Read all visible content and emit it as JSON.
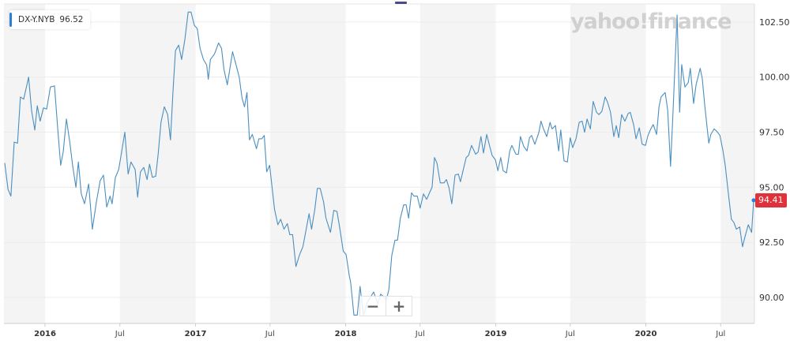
{
  "legend": {
    "symbol": "DX-Y.NYB",
    "value": "96.52",
    "color": "#2e7dd7"
  },
  "watermark_logo": "yahoo!finance",
  "zoom_controls": {
    "zoom_out": "−",
    "zoom_in": "+"
  },
  "current_price_tag": {
    "value": "94.41",
    "color": "#e0323a"
  },
  "chart_data": {
    "type": "line",
    "title": "",
    "xlabel": "",
    "ylabel": "",
    "xlim": [
      "2015-09-23",
      "2020-09-21"
    ],
    "ylim": [
      88.82,
      103.32
    ],
    "grid": {
      "horizontal": true,
      "vertical": false
    },
    "shaded_bands": "second half of each year (Jul–Dec)",
    "line_color": "#4a8fc0",
    "y_ticks": [
      {
        "value": 90,
        "label": "90.00"
      },
      {
        "value": 92.5,
        "label": "92.50"
      },
      {
        "value": 95,
        "label": "95.00"
      },
      {
        "value": 97.5,
        "label": "97.50"
      },
      {
        "value": 100,
        "label": "100.00"
      },
      {
        "value": 102.5,
        "label": "102.50"
      }
    ],
    "x_ticks": [
      {
        "date": "2016-01-01",
        "label": "2016",
        "year": true
      },
      {
        "date": "2016-07-01",
        "label": "Jul",
        "year": false
      },
      {
        "date": "2017-01-01",
        "label": "2017",
        "year": true
      },
      {
        "date": "2017-07-01",
        "label": "Jul",
        "year": false
      },
      {
        "date": "2018-01-01",
        "label": "2018",
        "year": true
      },
      {
        "date": "2018-07-01",
        "label": "Jul",
        "year": false
      },
      {
        "date": "2019-01-01",
        "label": "2019",
        "year": true
      },
      {
        "date": "2019-07-01",
        "label": "Jul",
        "year": false
      },
      {
        "date": "2020-01-01",
        "label": "2020",
        "year": true
      },
      {
        "date": "2020-07-01",
        "label": "Jul",
        "year": false
      }
    ],
    "series": [
      {
        "points": [
          [
            "2015-09-25",
            96.1
          ],
          [
            "2015-10-03",
            94.9
          ],
          [
            "2015-10-10",
            94.6
          ],
          [
            "2015-10-18",
            97.05
          ],
          [
            "2015-10-26",
            97.0
          ],
          [
            "2015-11-02",
            99.1
          ],
          [
            "2015-11-10",
            99.0
          ],
          [
            "2015-11-22",
            100.0
          ],
          [
            "2015-11-29",
            98.5
          ],
          [
            "2015-12-07",
            97.6
          ],
          [
            "2015-12-13",
            98.7
          ],
          [
            "2015-12-20",
            98.0
          ],
          [
            "2015-12-28",
            98.6
          ],
          [
            "2016-01-05",
            98.55
          ],
          [
            "2016-01-14",
            99.55
          ],
          [
            "2016-01-24",
            99.6
          ],
          [
            "2016-02-01",
            97.6
          ],
          [
            "2016-02-08",
            96.0
          ],
          [
            "2016-02-14",
            96.6
          ],
          [
            "2016-02-22",
            98.1
          ],
          [
            "2016-03-01",
            97.05
          ],
          [
            "2016-03-08",
            96.0
          ],
          [
            "2016-03-16",
            95.0
          ],
          [
            "2016-03-22",
            96.15
          ],
          [
            "2016-03-29",
            94.7
          ],
          [
            "2016-04-06",
            94.25
          ],
          [
            "2016-04-16",
            95.15
          ],
          [
            "2016-04-25",
            93.1
          ],
          [
            "2016-05-05",
            94.35
          ],
          [
            "2016-05-14",
            95.3
          ],
          [
            "2016-05-22",
            95.55
          ],
          [
            "2016-05-30",
            94.1
          ],
          [
            "2016-06-07",
            94.6
          ],
          [
            "2016-06-12",
            94.25
          ],
          [
            "2016-06-20",
            95.45
          ],
          [
            "2016-06-28",
            95.8
          ],
          [
            "2016-07-03",
            96.35
          ],
          [
            "2016-07-13",
            97.5
          ],
          [
            "2016-07-21",
            95.6
          ],
          [
            "2016-07-28",
            96.15
          ],
          [
            "2016-08-07",
            95.8
          ],
          [
            "2016-08-13",
            94.55
          ],
          [
            "2016-08-20",
            95.7
          ],
          [
            "2016-08-28",
            95.9
          ],
          [
            "2016-09-05",
            95.35
          ],
          [
            "2016-09-11",
            96.05
          ],
          [
            "2016-09-18",
            95.45
          ],
          [
            "2016-09-26",
            95.5
          ],
          [
            "2016-10-02",
            96.5
          ],
          [
            "2016-10-09",
            97.95
          ],
          [
            "2016-10-17",
            98.65
          ],
          [
            "2016-10-25",
            98.3
          ],
          [
            "2016-11-01",
            97.15
          ],
          [
            "2016-11-07",
            99.3
          ],
          [
            "2016-11-13",
            101.2
          ],
          [
            "2016-11-21",
            101.45
          ],
          [
            "2016-11-28",
            100.8
          ],
          [
            "2016-12-06",
            101.7
          ],
          [
            "2016-12-14",
            102.95
          ],
          [
            "2016-12-21",
            102.95
          ],
          [
            "2016-12-29",
            102.35
          ],
          [
            "2017-01-05",
            102.2
          ],
          [
            "2017-01-12",
            101.3
          ],
          [
            "2017-01-20",
            100.8
          ],
          [
            "2017-01-28",
            100.55
          ],
          [
            "2017-02-01",
            99.9
          ],
          [
            "2017-02-06",
            100.8
          ],
          [
            "2017-02-16",
            101.05
          ],
          [
            "2017-02-26",
            101.55
          ],
          [
            "2017-03-05",
            101.3
          ],
          [
            "2017-03-11",
            100.35
          ],
          [
            "2017-03-19",
            99.65
          ],
          [
            "2017-04-01",
            101.15
          ],
          [
            "2017-04-11",
            100.45
          ],
          [
            "2017-04-17",
            100.0
          ],
          [
            "2017-04-24",
            99.05
          ],
          [
            "2017-04-30",
            98.65
          ],
          [
            "2017-05-06",
            99.3
          ],
          [
            "2017-05-12",
            97.15
          ],
          [
            "2017-05-19",
            97.4
          ],
          [
            "2017-05-29",
            96.75
          ],
          [
            "2017-06-04",
            97.2
          ],
          [
            "2017-06-11",
            97.2
          ],
          [
            "2017-06-17",
            97.35
          ],
          [
            "2017-06-23",
            95.7
          ],
          [
            "2017-06-30",
            96.0
          ],
          [
            "2017-07-12",
            94.0
          ],
          [
            "2017-07-20",
            93.3
          ],
          [
            "2017-07-27",
            93.55
          ],
          [
            "2017-08-04",
            93.1
          ],
          [
            "2017-08-12",
            93.35
          ],
          [
            "2017-08-18",
            92.85
          ],
          [
            "2017-08-25",
            92.85
          ],
          [
            "2017-09-02",
            91.4
          ],
          [
            "2017-09-11",
            91.95
          ],
          [
            "2017-09-19",
            92.3
          ],
          [
            "2017-09-27",
            93.1
          ],
          [
            "2017-10-04",
            93.8
          ],
          [
            "2017-10-10",
            93.1
          ],
          [
            "2017-10-18",
            94.0
          ],
          [
            "2017-10-24",
            94.95
          ],
          [
            "2017-10-31",
            94.95
          ],
          [
            "2017-11-08",
            94.35
          ],
          [
            "2017-11-14",
            93.6
          ],
          [
            "2017-11-25",
            92.95
          ],
          [
            "2017-12-03",
            93.95
          ],
          [
            "2017-12-11",
            93.9
          ],
          [
            "2017-12-18",
            93.1
          ],
          [
            "2017-12-26",
            92.1
          ],
          [
            "2018-01-02",
            91.95
          ],
          [
            "2018-01-10",
            90.95
          ],
          [
            "2018-01-13",
            90.7
          ],
          [
            "2018-01-21",
            89.2
          ],
          [
            "2018-01-29",
            89.2
          ],
          [
            "2018-02-05",
            90.5
          ],
          [
            "2018-02-13",
            89.2
          ],
          [
            "2018-02-23",
            89.8
          ],
          [
            "2018-03-10",
            90.25
          ],
          [
            "2018-03-20",
            89.7
          ],
          [
            "2018-03-27",
            90.15
          ],
          [
            "2018-04-02",
            90.05
          ],
          [
            "2018-04-10",
            89.9
          ],
          [
            "2018-04-16",
            90.35
          ],
          [
            "2018-04-23",
            91.9
          ],
          [
            "2018-05-01",
            92.6
          ],
          [
            "2018-05-07",
            92.6
          ],
          [
            "2018-05-14",
            93.6
          ],
          [
            "2018-05-22",
            94.2
          ],
          [
            "2018-05-28",
            94.2
          ],
          [
            "2018-06-03",
            93.6
          ],
          [
            "2018-06-10",
            94.75
          ],
          [
            "2018-06-16",
            94.6
          ],
          [
            "2018-06-24",
            94.6
          ],
          [
            "2018-07-01",
            94.05
          ],
          [
            "2018-07-09",
            94.7
          ],
          [
            "2018-07-17",
            94.45
          ],
          [
            "2018-07-25",
            94.8
          ],
          [
            "2018-07-30",
            95.0
          ],
          [
            "2018-08-05",
            96.35
          ],
          [
            "2018-08-11",
            96.1
          ],
          [
            "2018-08-19",
            95.2
          ],
          [
            "2018-08-28",
            95.2
          ],
          [
            "2018-09-03",
            95.35
          ],
          [
            "2018-09-09",
            95.0
          ],
          [
            "2018-09-16",
            94.25
          ],
          [
            "2018-09-24",
            95.55
          ],
          [
            "2018-10-02",
            95.6
          ],
          [
            "2018-10-07",
            95.25
          ],
          [
            "2018-10-21",
            96.35
          ],
          [
            "2018-10-27",
            96.45
          ],
          [
            "2018-11-03",
            96.9
          ],
          [
            "2018-11-13",
            96.5
          ],
          [
            "2018-11-19",
            96.6
          ],
          [
            "2018-11-26",
            97.3
          ],
          [
            "2018-12-02",
            96.55
          ],
          [
            "2018-12-10",
            97.4
          ],
          [
            "2018-12-16",
            96.95
          ],
          [
            "2018-12-23",
            96.45
          ],
          [
            "2018-12-31",
            96.25
          ],
          [
            "2019-01-06",
            95.75
          ],
          [
            "2019-01-13",
            96.35
          ],
          [
            "2019-01-19",
            95.75
          ],
          [
            "2019-01-27",
            95.65
          ],
          [
            "2019-02-04",
            96.65
          ],
          [
            "2019-02-09",
            96.9
          ],
          [
            "2019-02-19",
            96.5
          ],
          [
            "2019-02-25",
            96.5
          ],
          [
            "2019-03-02",
            97.3
          ],
          [
            "2019-03-10",
            96.85
          ],
          [
            "2019-03-18",
            96.65
          ],
          [
            "2019-03-24",
            97.25
          ],
          [
            "2019-03-29",
            97.35
          ],
          [
            "2019-04-06",
            96.95
          ],
          [
            "2019-04-16",
            97.5
          ],
          [
            "2019-04-21",
            98.0
          ],
          [
            "2019-04-27",
            97.65
          ],
          [
            "2019-05-05",
            97.3
          ],
          [
            "2019-05-13",
            97.95
          ],
          [
            "2019-05-18",
            97.65
          ],
          [
            "2019-05-26",
            97.8
          ],
          [
            "2019-06-03",
            96.65
          ],
          [
            "2019-06-08",
            97.6
          ],
          [
            "2019-06-16",
            96.2
          ],
          [
            "2019-06-24",
            96.15
          ],
          [
            "2019-07-01",
            97.25
          ],
          [
            "2019-07-07",
            96.8
          ],
          [
            "2019-07-15",
            97.2
          ],
          [
            "2019-07-23",
            97.95
          ],
          [
            "2019-07-30",
            98.0
          ],
          [
            "2019-08-05",
            97.5
          ],
          [
            "2019-08-11",
            98.1
          ],
          [
            "2019-08-19",
            97.65
          ],
          [
            "2019-08-26",
            98.9
          ],
          [
            "2019-09-03",
            98.4
          ],
          [
            "2019-09-09",
            98.3
          ],
          [
            "2019-09-16",
            98.45
          ],
          [
            "2019-09-24",
            99.1
          ],
          [
            "2019-09-30",
            98.85
          ],
          [
            "2019-10-07",
            98.4
          ],
          [
            "2019-10-15",
            97.3
          ],
          [
            "2019-10-21",
            97.8
          ],
          [
            "2019-10-27",
            97.25
          ],
          [
            "2019-11-03",
            98.3
          ],
          [
            "2019-11-11",
            98.0
          ],
          [
            "2019-11-19",
            98.35
          ],
          [
            "2019-11-24",
            98.4
          ],
          [
            "2019-12-02",
            97.85
          ],
          [
            "2019-12-08",
            97.2
          ],
          [
            "2019-12-16",
            97.7
          ],
          [
            "2019-12-23",
            96.95
          ],
          [
            "2019-12-31",
            96.9
          ],
          [
            "2020-01-06",
            97.35
          ],
          [
            "2020-01-13",
            97.65
          ],
          [
            "2020-01-19",
            97.85
          ],
          [
            "2020-01-27",
            97.4
          ],
          [
            "2020-02-02",
            98.65
          ],
          [
            "2020-02-07",
            99.1
          ],
          [
            "2020-02-17",
            99.3
          ],
          [
            "2020-02-23",
            98.5
          ],
          [
            "2020-03-01",
            95.95
          ],
          [
            "2020-03-07",
            98.4
          ],
          [
            "2020-03-17",
            102.82
          ],
          [
            "2020-03-23",
            98.4
          ],
          [
            "2020-03-28",
            100.57
          ],
          [
            "2020-04-05",
            99.55
          ],
          [
            "2020-04-13",
            99.75
          ],
          [
            "2020-04-18",
            100.4
          ],
          [
            "2020-04-26",
            98.8
          ],
          [
            "2020-05-02",
            99.65
          ],
          [
            "2020-05-12",
            100.4
          ],
          [
            "2020-05-17",
            99.95
          ],
          [
            "2020-05-23",
            98.75
          ],
          [
            "2020-06-02",
            97.0
          ],
          [
            "2020-06-07",
            97.4
          ],
          [
            "2020-06-15",
            97.65
          ],
          [
            "2020-06-21",
            97.55
          ],
          [
            "2020-06-29",
            97.35
          ],
          [
            "2020-07-06",
            96.7
          ],
          [
            "2020-07-12",
            96.0
          ],
          [
            "2020-07-20",
            94.65
          ],
          [
            "2020-07-27",
            93.55
          ],
          [
            "2020-08-02",
            93.4
          ],
          [
            "2020-08-08",
            93.1
          ],
          [
            "2020-08-16",
            93.2
          ],
          [
            "2020-08-23",
            92.3
          ],
          [
            "2020-08-29",
            92.75
          ],
          [
            "2020-09-06",
            93.3
          ],
          [
            "2020-09-14",
            92.95
          ],
          [
            "2020-09-19",
            94.41
          ]
        ]
      }
    ]
  }
}
